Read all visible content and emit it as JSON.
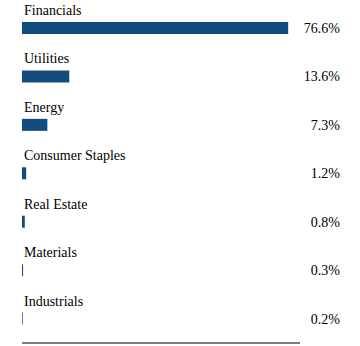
{
  "chart_data": {
    "type": "bar",
    "orientation": "horizontal",
    "categories": [
      "Financials",
      "Utilities",
      "Energy",
      "Consumer Staples",
      "Real Estate",
      "Materials",
      "Industrials"
    ],
    "values": [
      76.6,
      13.6,
      7.3,
      1.2,
      0.8,
      0.3,
      0.2
    ],
    "value_labels": [
      "76.6%",
      "13.6%",
      "7.3%",
      "1.2%",
      "0.8%",
      "0.3%",
      "0.2%"
    ],
    "color": "#134b7f",
    "xlim": [
      0,
      80
    ],
    "data_labels": true,
    "tick_labels": false,
    "grid": false
  }
}
